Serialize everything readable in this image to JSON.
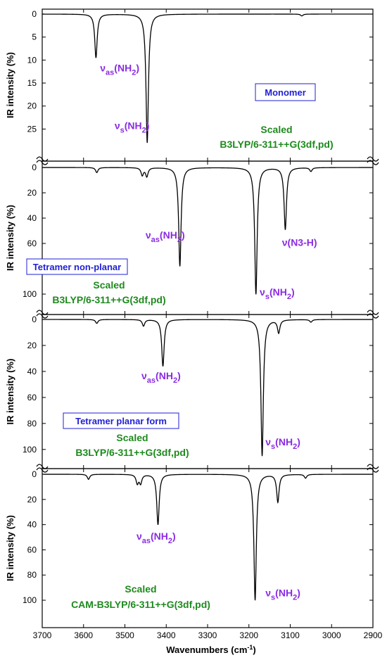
{
  "colors": {
    "annotation": "#8a2be2",
    "box_label": "#1f1fd6",
    "method": "#1e8a1e",
    "line": "#000000",
    "axis": "#000000"
  },
  "chart_data": {
    "type": "line",
    "xlabel": "Wavenumbers (cm",
    "xlabel_sup": "-1",
    "xlabel_end": ")",
    "xlim": [
      3700,
      2900
    ],
    "xticks": [
      3700,
      3600,
      3500,
      3400,
      3300,
      3200,
      3100,
      3000,
      2900
    ],
    "panels": [
      {
        "id": "monomer",
        "ylabel": "IR intensity (%)",
        "ylim": [
          0,
          28
        ],
        "yticks": [
          0,
          5,
          10,
          15,
          20,
          25
        ],
        "width": 7,
        "peaks": [
          {
            "x": 3570,
            "y": 9.5
          },
          {
            "x": 3446,
            "y": 28
          },
          {
            "x": 3072,
            "y": 0.4
          }
        ],
        "annotations": [
          {
            "text": "ν",
            "sub": "as",
            "rest": "(NH",
            "sub2": "2",
            "end": ")",
            "x": 3560,
            "y": 12.5
          },
          {
            "text": "ν",
            "sub": "s",
            "rest": "(NH",
            "sub2": "2",
            "end": ")",
            "x": 3525,
            "y": 25
          }
        ],
        "box_label": "Monomer",
        "method_lines": [
          "Scaled",
          "B3LYP/6-311++G(3df,pd)"
        ]
      },
      {
        "id": "tetramer-nonplanar",
        "ylabel": "IR intensity (%)",
        "ylim": [
          0,
          105
        ],
        "yticks": [
          0,
          20,
          40,
          60,
          80,
          100
        ],
        "width": 7,
        "peaks": [
          {
            "x": 3568,
            "y": 4
          },
          {
            "x": 3458,
            "y": 6
          },
          {
            "x": 3447,
            "y": 7
          },
          {
            "x": 3367,
            "y": 78
          },
          {
            "x": 3183,
            "y": 100
          },
          {
            "x": 3112,
            "y": 49
          },
          {
            "x": 3050,
            "y": 3
          }
        ],
        "annotations": [
          {
            "text": "ν",
            "sub": "as",
            "rest": "(NH",
            "sub2": "2",
            "end": ")",
            "x": 3450,
            "y": 56
          },
          {
            "text": "ν",
            "sub": "s",
            "rest": "(NH",
            "sub2": "2",
            "end": ")",
            "x": 3174,
            "y": 101
          },
          {
            "text": "ν(N3-H)",
            "sub": "",
            "rest": "",
            "sub2": "",
            "end": "",
            "x": 3120,
            "y": 62
          }
        ],
        "box_label": "Tetramer non-planar",
        "method_lines": [
          "Scaled",
          "B3LYP/6-311++G(3df,pd)"
        ]
      },
      {
        "id": "tetramer-planar",
        "ylabel": "IR intensity (%)",
        "ylim": [
          0,
          105
        ],
        "yticks": [
          0,
          20,
          40,
          60,
          80,
          100
        ],
        "width": 7,
        "peaks": [
          {
            "x": 3568,
            "y": 3
          },
          {
            "x": 3455,
            "y": 5
          },
          {
            "x": 3408,
            "y": 36
          },
          {
            "x": 3168,
            "y": 105
          },
          {
            "x": 3128,
            "y": 10
          },
          {
            "x": 3050,
            "y": 2
          }
        ],
        "annotations": [
          {
            "text": "ν",
            "sub": "as",
            "rest": "(NH",
            "sub2": "2",
            "end": ")",
            "x": 3460,
            "y": 46
          },
          {
            "text": "ν",
            "sub": "s",
            "rest": "(NH",
            "sub2": "2",
            "end": ")",
            "x": 3160,
            "y": 97
          }
        ],
        "box_label": "Tetramer planar form",
        "method_lines": [
          "Scaled",
          "B3LYP/6-311++G(3df,pd)"
        ]
      },
      {
        "id": "cam-b3lyp",
        "ylabel": "IR intensity (%)",
        "ylim": [
          0,
          105
        ],
        "yticks": [
          0,
          20,
          40,
          60,
          80,
          100
        ],
        "width": 7,
        "peaks": [
          {
            "x": 3588,
            "y": 4
          },
          {
            "x": 3470,
            "y": 7
          },
          {
            "x": 3462,
            "y": 7
          },
          {
            "x": 3420,
            "y": 40
          },
          {
            "x": 3185,
            "y": 100
          },
          {
            "x": 3130,
            "y": 22
          },
          {
            "x": 3063,
            "y": 3
          }
        ],
        "annotations": [
          {
            "text": "ν",
            "sub": "as",
            "rest": "(NH",
            "sub2": "2",
            "end": ")",
            "x": 3472,
            "y": 52
          },
          {
            "text": "ν",
            "sub": "s",
            "rest": "(NH",
            "sub2": "2",
            "end": ")",
            "x": 3160,
            "y": 97
          }
        ],
        "box_label": "",
        "method_lines": [
          "Scaled",
          "CAM-B3LYP/6-311++G(3df,pd)"
        ]
      }
    ]
  }
}
